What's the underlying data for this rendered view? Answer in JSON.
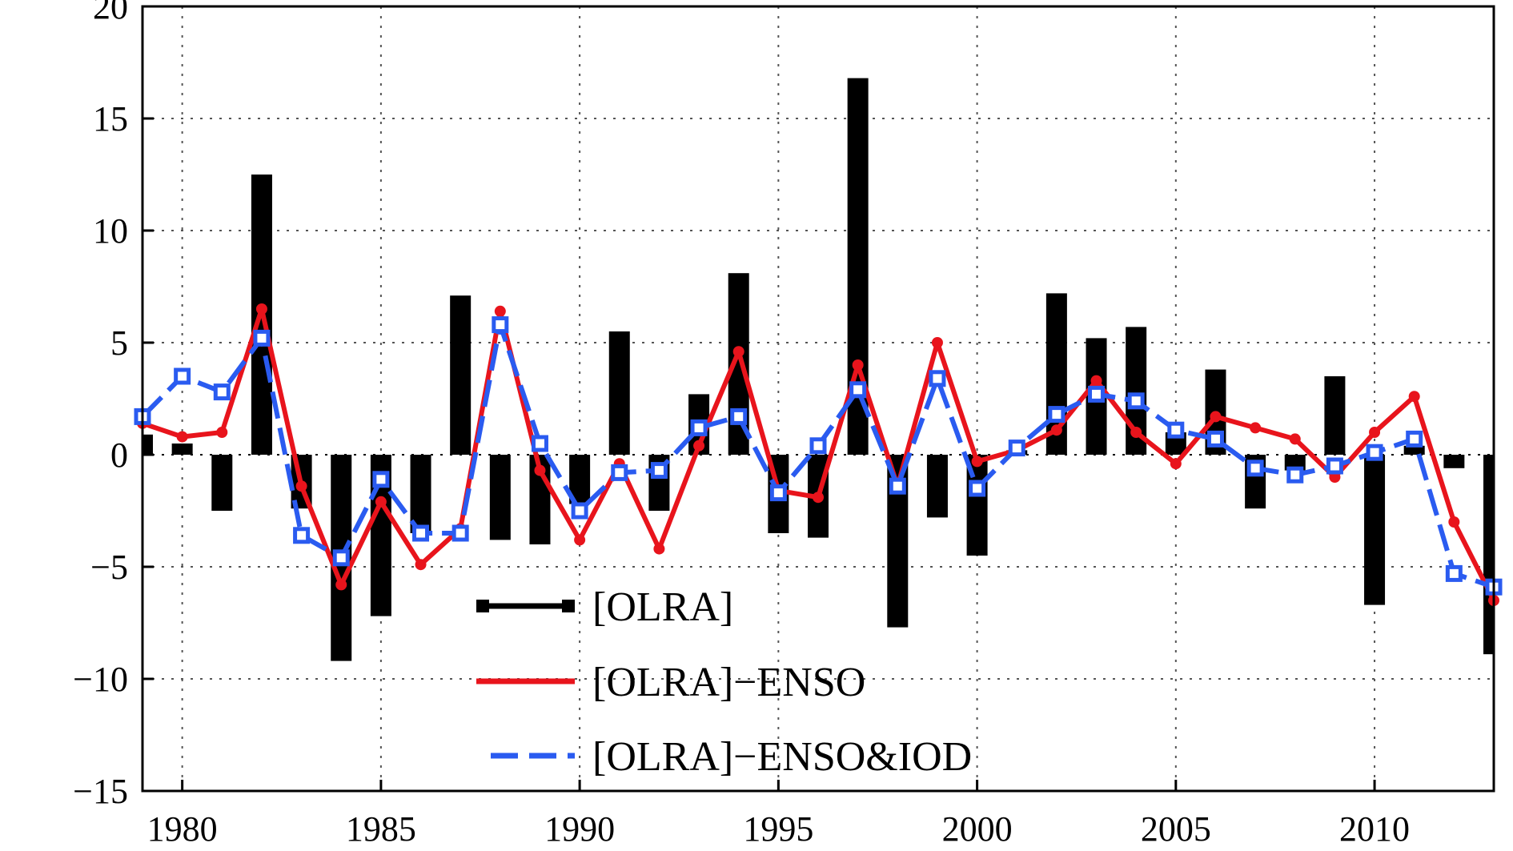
{
  "chart_data": {
    "type": "bar",
    "title": "",
    "xlabel": "",
    "ylabel": "",
    "xlim": [
      1979,
      2013
    ],
    "ylim": [
      -15,
      20
    ],
    "yticks": [
      {
        "value": -15,
        "label": "−15"
      },
      {
        "value": -10,
        "label": "−10"
      },
      {
        "value": -5,
        "label": "−5"
      },
      {
        "value": 0,
        "label": "0"
      },
      {
        "value": 5,
        "label": "5"
      },
      {
        "value": 10,
        "label": "10"
      },
      {
        "value": 15,
        "label": "15"
      },
      {
        "value": 20,
        "label": "20"
      }
    ],
    "xticks": [
      {
        "value": 1980,
        "label": "1980"
      },
      {
        "value": 1985,
        "label": "1985"
      },
      {
        "value": 1990,
        "label": "1990"
      },
      {
        "value": 1995,
        "label": "1995"
      },
      {
        "value": 2000,
        "label": "2000"
      },
      {
        "value": 2005,
        "label": "2005"
      },
      {
        "value": 2010,
        "label": "2010"
      }
    ],
    "grid": true,
    "legend_position": "bottom-center",
    "x": [
      1979,
      1980,
      1981,
      1982,
      1983,
      1984,
      1985,
      1986,
      1987,
      1988,
      1989,
      1990,
      1991,
      1992,
      1993,
      1994,
      1995,
      1996,
      1997,
      1998,
      1999,
      2000,
      2001,
      2002,
      2003,
      2004,
      2005,
      2006,
      2007,
      2008,
      2009,
      2010,
      2011,
      2012,
      2013
    ],
    "series": [
      {
        "name": "[OLRA]",
        "type": "bar",
        "color": "#000000",
        "values": [
          0.9,
          0.5,
          -2.5,
          12.5,
          -2.4,
          -9.2,
          -7.2,
          -3.5,
          7.1,
          -3.8,
          -4.0,
          -2.2,
          5.5,
          -2.5,
          2.7,
          8.1,
          -3.5,
          -3.7,
          16.8,
          -7.7,
          -2.8,
          -4.5,
          0.2,
          7.2,
          5.2,
          5.7,
          1.0,
          3.8,
          -2.4,
          -0.7,
          3.5,
          -6.7,
          0.4,
          -0.6,
          -8.9
        ]
      },
      {
        "name": "[OLRA]−ENSO",
        "type": "line",
        "color": "#e8141c",
        "values": [
          1.4,
          0.8,
          1.0,
          6.5,
          -1.4,
          -5.8,
          -2.1,
          -4.9,
          -3.3,
          6.4,
          -0.7,
          -3.8,
          -0.4,
          -4.2,
          0.4,
          4.6,
          -1.6,
          -1.9,
          4.0,
          -1.4,
          5.0,
          -0.3,
          0.2,
          1.1,
          3.3,
          1.0,
          -0.4,
          1.7,
          1.2,
          0.7,
          -1.0,
          1.0,
          2.6,
          -3.0,
          -6.5
        ]
      },
      {
        "name": "[OLRA]−ENSO&IOD",
        "type": "line",
        "color": "#2a5bf0",
        "values": [
          1.7,
          3.5,
          2.8,
          5.2,
          -3.6,
          -4.6,
          -1.1,
          -3.5,
          -3.5,
          5.8,
          0.5,
          -2.5,
          -0.8,
          -0.7,
          1.2,
          1.7,
          -1.7,
          0.4,
          2.9,
          -1.4,
          3.4,
          -1.5,
          0.3,
          1.8,
          2.7,
          2.4,
          1.1,
          0.7,
          -0.6,
          -0.9,
          -0.5,
          0.1,
          0.7,
          -5.3,
          -5.9
        ]
      }
    ]
  }
}
